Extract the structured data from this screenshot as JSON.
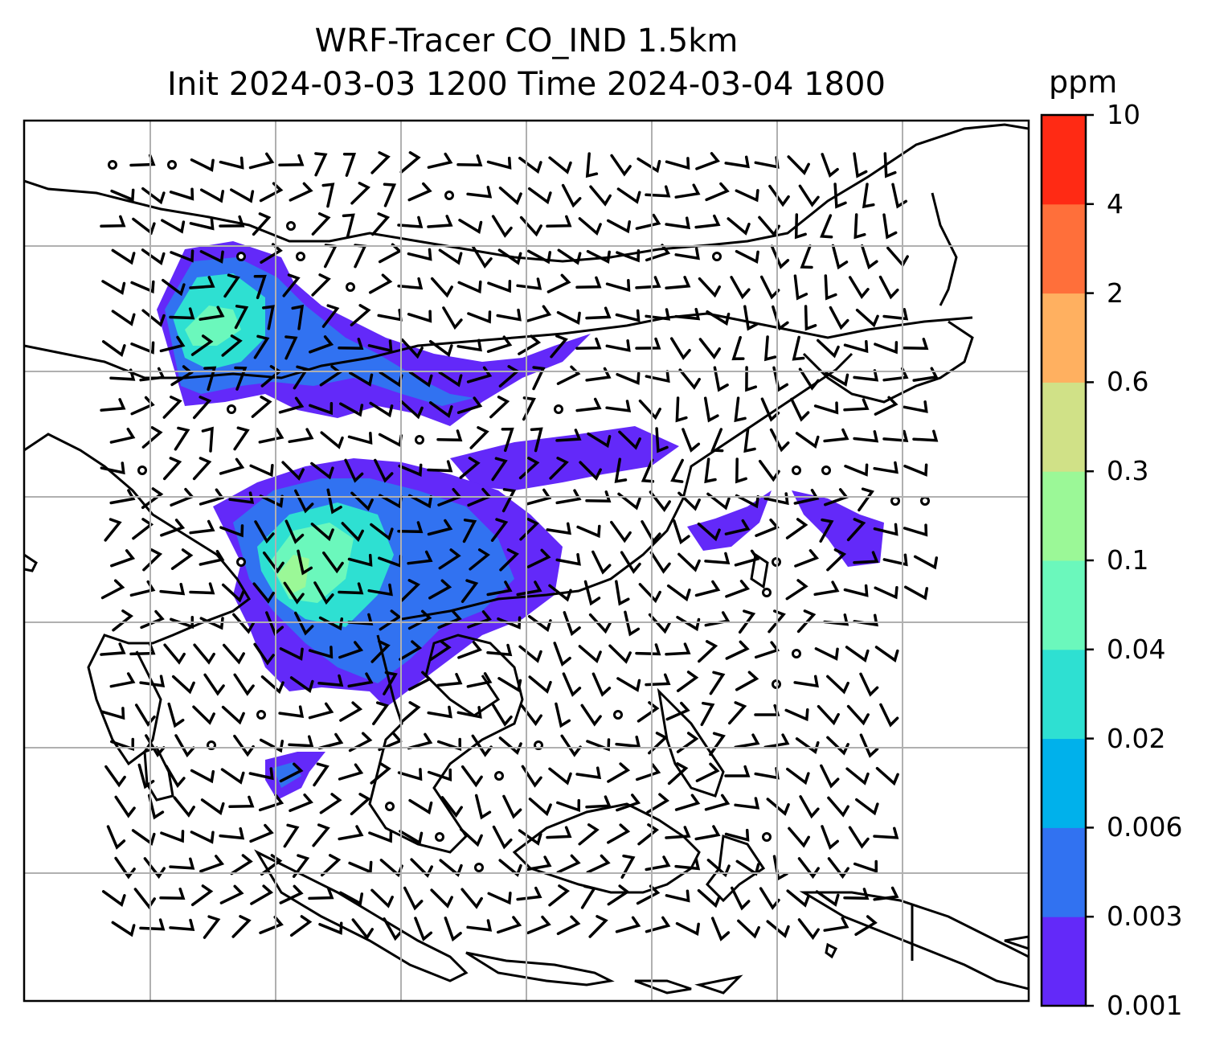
{
  "title": {
    "line1": "WRF-Tracer CO_IND 1.5km",
    "line2": "Init 2024-03-03 1200 Time 2024-03-04 1800"
  },
  "colorbar": {
    "unit": "ppm",
    "levels": [
      "0.001",
      "0.003",
      "0.006",
      "0.02",
      "0.04",
      "0.1",
      "0.3",
      "0.6",
      "2",
      "4",
      "10"
    ],
    "colors": [
      "#6329f9",
      "#3172f1",
      "#00b1eb",
      "#2ee0d2",
      "#6bf8bc",
      "#9bf897",
      "#d0e187",
      "#ffb060",
      "#ff6f3a",
      "#ff2a14"
    ]
  },
  "map": {
    "tracer": "CO_IND",
    "resolution": "1.5km",
    "layers": [
      "coastlines",
      "gridlines",
      "tracer-concentration",
      "wind-barbs"
    ]
  }
}
